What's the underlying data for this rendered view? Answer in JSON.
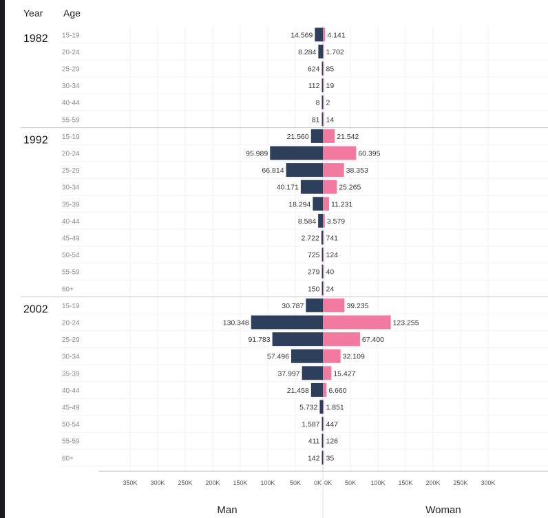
{
  "chart_data": {
    "type": "bar",
    "orientation": "horizontal",
    "layout": "population-pyramid",
    "header": {
      "year": "Year",
      "age": "Age"
    },
    "colors": {
      "man": "#2e3f5c",
      "woman": "#f27aa0"
    },
    "series_labels": {
      "man": "Man",
      "woman": "Woman"
    },
    "x_axis": {
      "left_ticks": [
        "350K",
        "300K",
        "250K",
        "200K",
        "150K",
        "100K",
        "50K",
        "0K"
      ],
      "right_ticks": [
        "0K",
        "50K",
        "100K",
        "150K",
        "200K",
        "250K",
        "300K"
      ],
      "range": [
        0,
        350000
      ],
      "tick_step": 50000
    },
    "groups": [
      {
        "year": "1982",
        "rows": [
          {
            "age": "15-19",
            "man": 14569,
            "man_label": "14.569",
            "woman": 4141,
            "woman_label": "4.141"
          },
          {
            "age": "20-24",
            "man": 8284,
            "man_label": "8.284",
            "woman": 1702,
            "woman_label": "1.702"
          },
          {
            "age": "25-29",
            "man": 624,
            "man_label": "624",
            "woman": 85,
            "woman_label": "85"
          },
          {
            "age": "30-34",
            "man": 112,
            "man_label": "112",
            "woman": 19,
            "woman_label": "19"
          },
          {
            "age": "40-44",
            "man": 8,
            "man_label": "8",
            "woman": 2,
            "woman_label": "2"
          },
          {
            "age": "55-59",
            "man": 81,
            "man_label": "81",
            "woman": 14,
            "woman_label": "14"
          }
        ]
      },
      {
        "year": "1992",
        "rows": [
          {
            "age": "15-19",
            "man": 21560,
            "man_label": "21.560",
            "woman": 21542,
            "woman_label": "21.542"
          },
          {
            "age": "20-24",
            "man": 95989,
            "man_label": "95.989",
            "woman": 60395,
            "woman_label": "60.395"
          },
          {
            "age": "25-29",
            "man": 66814,
            "man_label": "66.814",
            "woman": 38353,
            "woman_label": "38.353"
          },
          {
            "age": "30-34",
            "man": 40171,
            "man_label": "40.171",
            "woman": 25265,
            "woman_label": "25.265"
          },
          {
            "age": "35-39",
            "man": 18294,
            "man_label": "18.294",
            "woman": 11231,
            "woman_label": "11.231"
          },
          {
            "age": "40-44",
            "man": 8584,
            "man_label": "8.584",
            "woman": 3579,
            "woman_label": "3.579"
          },
          {
            "age": "45-49",
            "man": 2722,
            "man_label": "2.722",
            "woman": 741,
            "woman_label": "741"
          },
          {
            "age": "50-54",
            "man": 725,
            "man_label": "725",
            "woman": 124,
            "woman_label": "124"
          },
          {
            "age": "55-59",
            "man": 279,
            "man_label": "279",
            "woman": 40,
            "woman_label": "40"
          },
          {
            "age": "60+",
            "man": 150,
            "man_label": "150",
            "woman": 24,
            "woman_label": "24"
          }
        ]
      },
      {
        "year": "2002",
        "rows": [
          {
            "age": "15-19",
            "man": 30787,
            "man_label": "30.787",
            "woman": 39235,
            "woman_label": "39.235"
          },
          {
            "age": "20-24",
            "man": 130348,
            "man_label": "130.348",
            "woman": 123255,
            "woman_label": "123.255"
          },
          {
            "age": "25-29",
            "man": 91783,
            "man_label": "91.783",
            "woman": 67400,
            "woman_label": "67.400"
          },
          {
            "age": "30-34",
            "man": 57496,
            "man_label": "57.496",
            "woman": 32109,
            "woman_label": "32.109"
          },
          {
            "age": "35-39",
            "man": 37997,
            "man_label": "37.997",
            "woman": 15427,
            "woman_label": "15.427"
          },
          {
            "age": "40-44",
            "man": 21458,
            "man_label": "21.458",
            "woman": 6660,
            "woman_label": "6.660"
          },
          {
            "age": "45-49",
            "man": 5732,
            "man_label": "5.732",
            "woman": 1851,
            "woman_label": "1.851"
          },
          {
            "age": "50-54",
            "man": 1587,
            "man_label": "1.587",
            "woman": 447,
            "woman_label": "447"
          },
          {
            "age": "55-59",
            "man": 411,
            "man_label": "411",
            "woman": 126,
            "woman_label": "126"
          },
          {
            "age": "60+",
            "man": 142,
            "man_label": "142",
            "woman": 35,
            "woman_label": "35"
          }
        ]
      }
    ]
  }
}
